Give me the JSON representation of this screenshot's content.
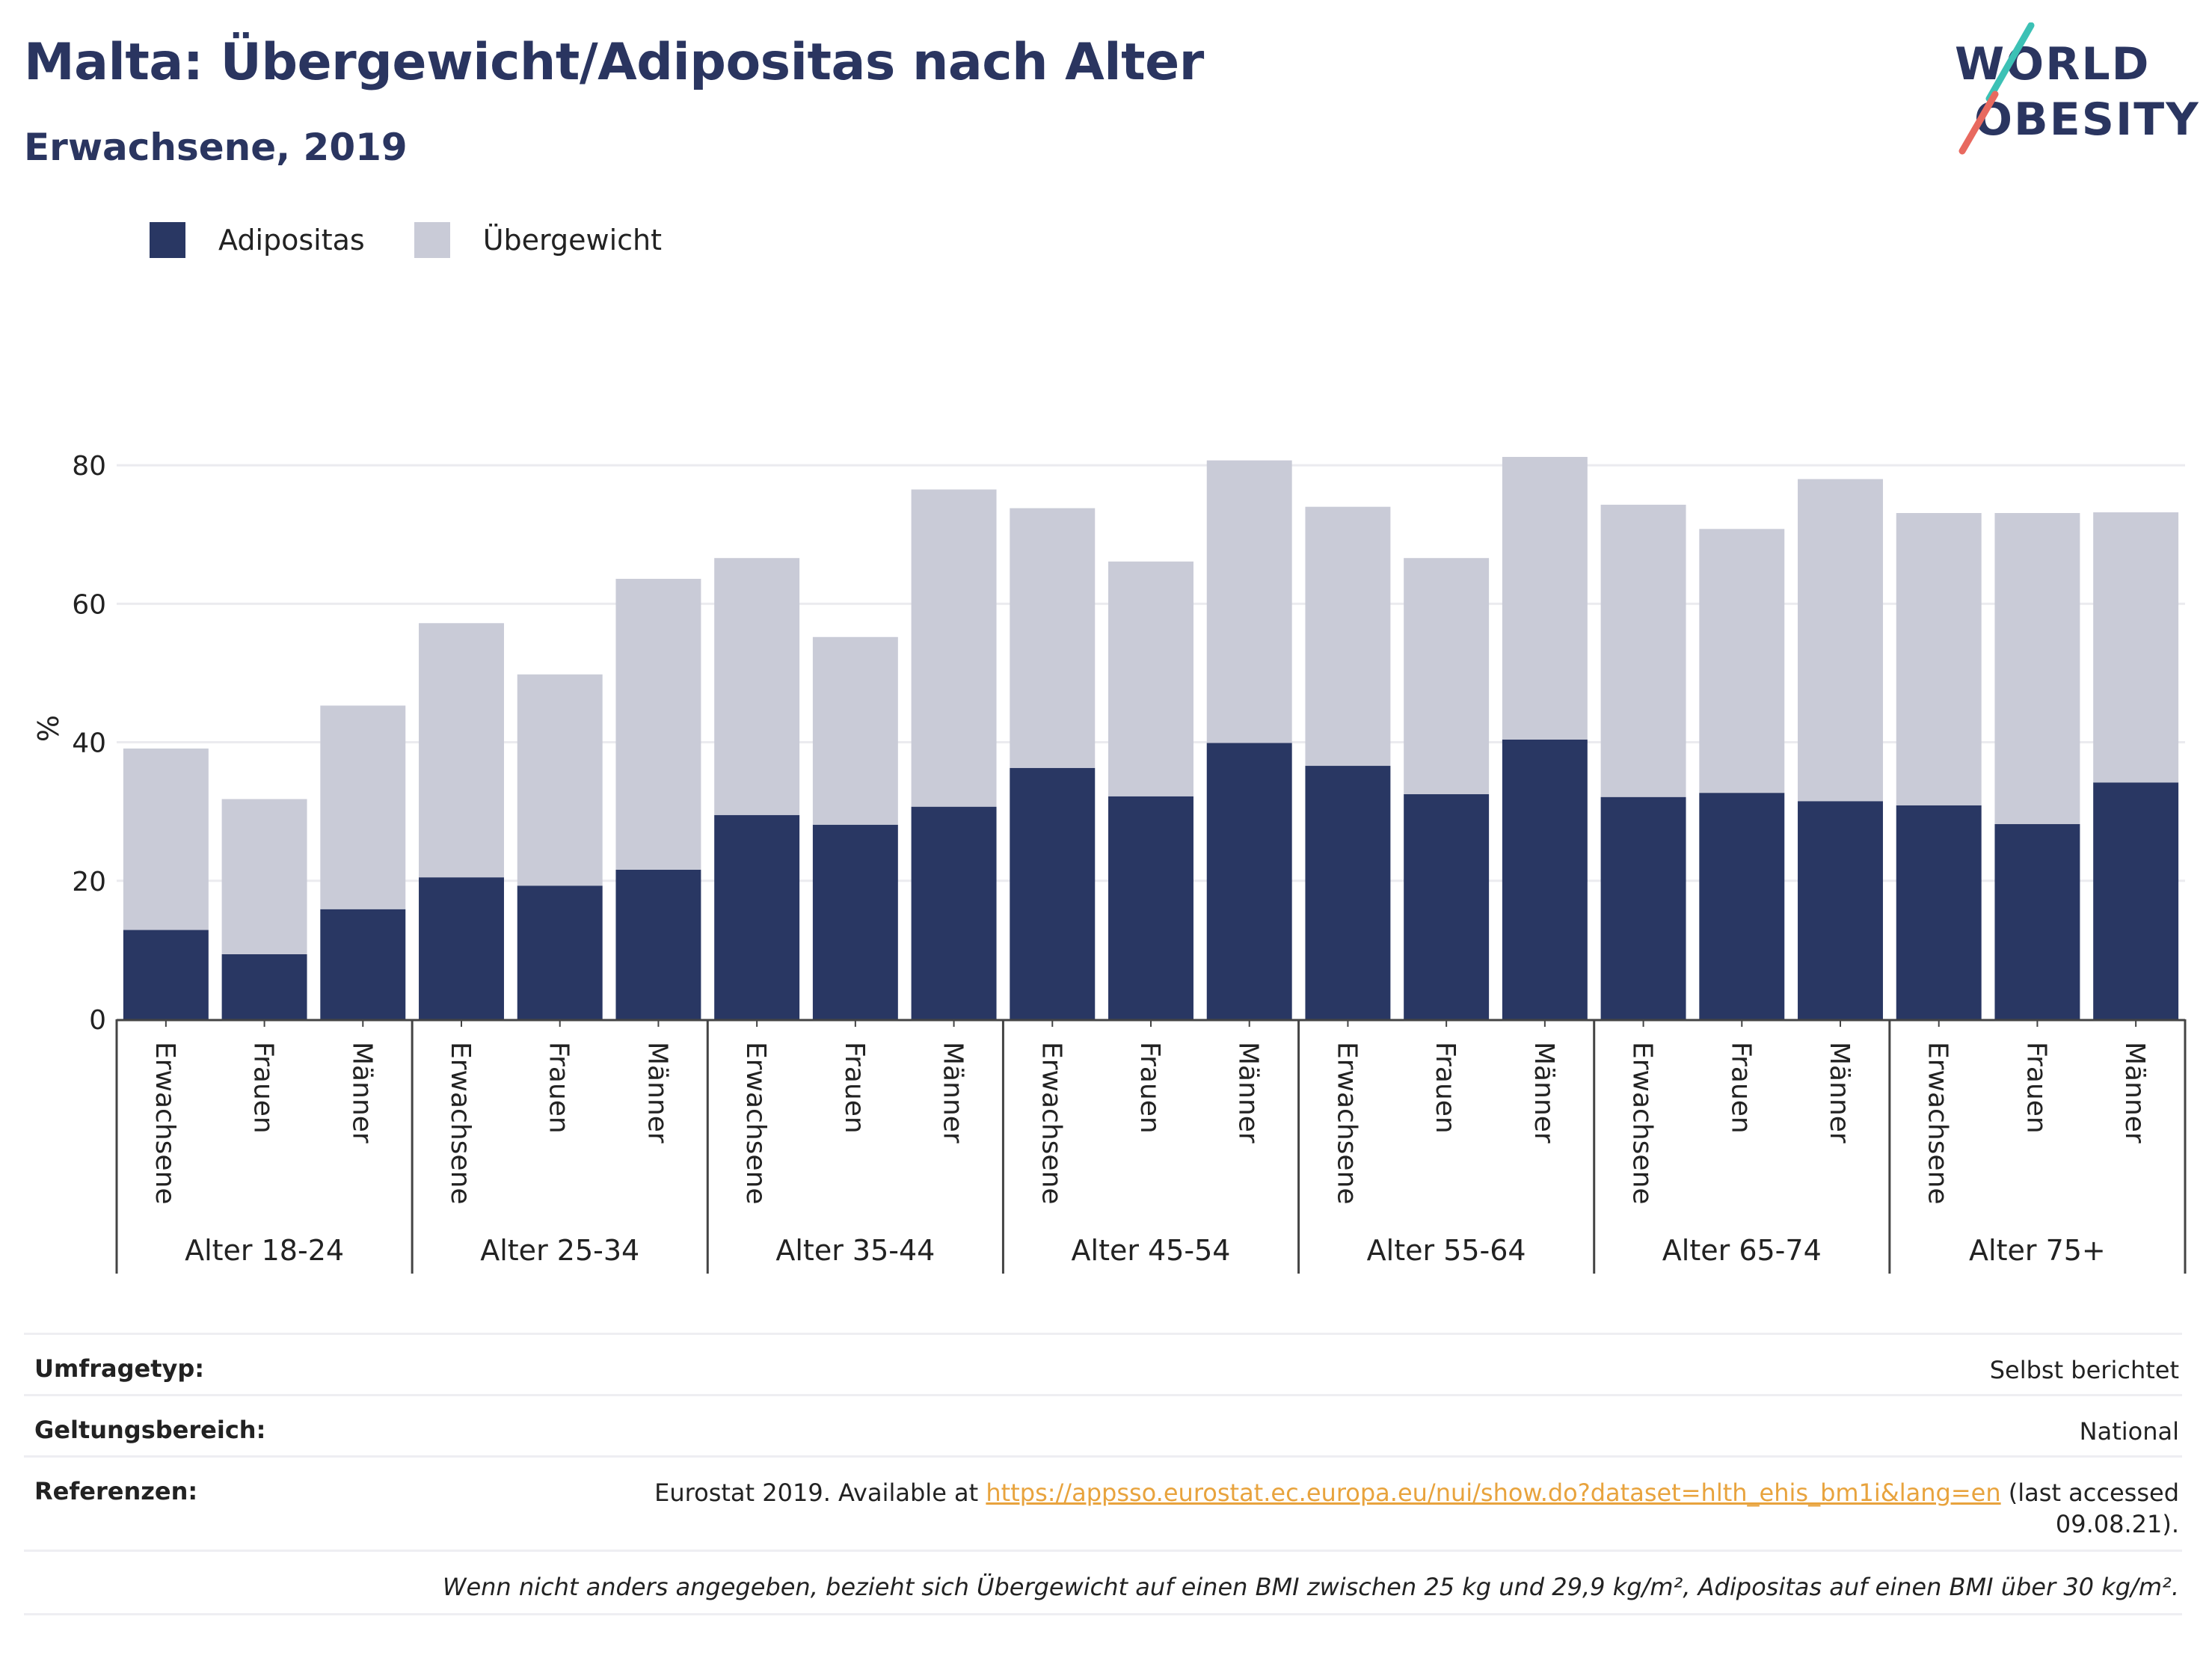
{
  "title": "Malta: Übergewicht/Adipositas nach Alter",
  "subtitle": "Erwachsene, 2019",
  "logo": {
    "line1": "WORLD",
    "line2": "OBESITY"
  },
  "legend": [
    {
      "label": "Adipositas",
      "color": "#293763"
    },
    {
      "label": "Übergewicht",
      "color": "#c9cbd7"
    }
  ],
  "chart_data": {
    "type": "bar",
    "stacked": true,
    "ylabel": "%",
    "ylim": [
      0,
      88
    ],
    "yticks": [
      0,
      20,
      40,
      60,
      80
    ],
    "grid": true,
    "legend_position": "top-left",
    "groups": [
      "Alter 18-24",
      "Alter 25-34",
      "Alter 35-44",
      "Alter 45-54",
      "Alter 55-64",
      "Alter 65-74",
      "Alter 75+"
    ],
    "subcategories": [
      "Erwachsene",
      "Frauen",
      "Männer"
    ],
    "series": [
      {
        "name": "Adipositas",
        "color": "#293763",
        "values": [
          12.9,
          9.4,
          15.9,
          20.5,
          19.3,
          21.6,
          29.5,
          28.1,
          30.7,
          36.3,
          32.2,
          39.9,
          36.6,
          32.5,
          40.4,
          32.1,
          32.7,
          31.5,
          30.9,
          28.2,
          34.2
        ]
      },
      {
        "name": "Übergewicht",
        "color": "#c9cbd7",
        "values": [
          26.2,
          22.4,
          29.4,
          36.7,
          30.5,
          42.0,
          37.1,
          27.1,
          45.8,
          37.5,
          33.9,
          40.8,
          37.4,
          34.1,
          40.8,
          42.2,
          38.1,
          46.5,
          42.2,
          44.9,
          39.0
        ]
      }
    ]
  },
  "footer": {
    "survey_label": "Umfragetyp:",
    "survey_value": "Selbst berichtet",
    "scope_label": "Geltungsbereich:",
    "scope_value": "National",
    "refs_label": "Referenzen:",
    "refs_prefix": "Eurostat 2019. Available at ",
    "refs_link": "https://appsso.eurostat.ec.europa.eu/nui/show.do?dataset=hlth_ehis_bm1i&lang=en",
    "refs_suffix_1": " (last accessed",
    "refs_suffix_2": "09.08.21).",
    "note": "Wenn nicht anders angegeben, bezieht sich Übergewicht auf einen BMI zwischen 25 kg und 29,9 kg/m², Adipositas auf einen BMI über 30 kg/m²."
  }
}
